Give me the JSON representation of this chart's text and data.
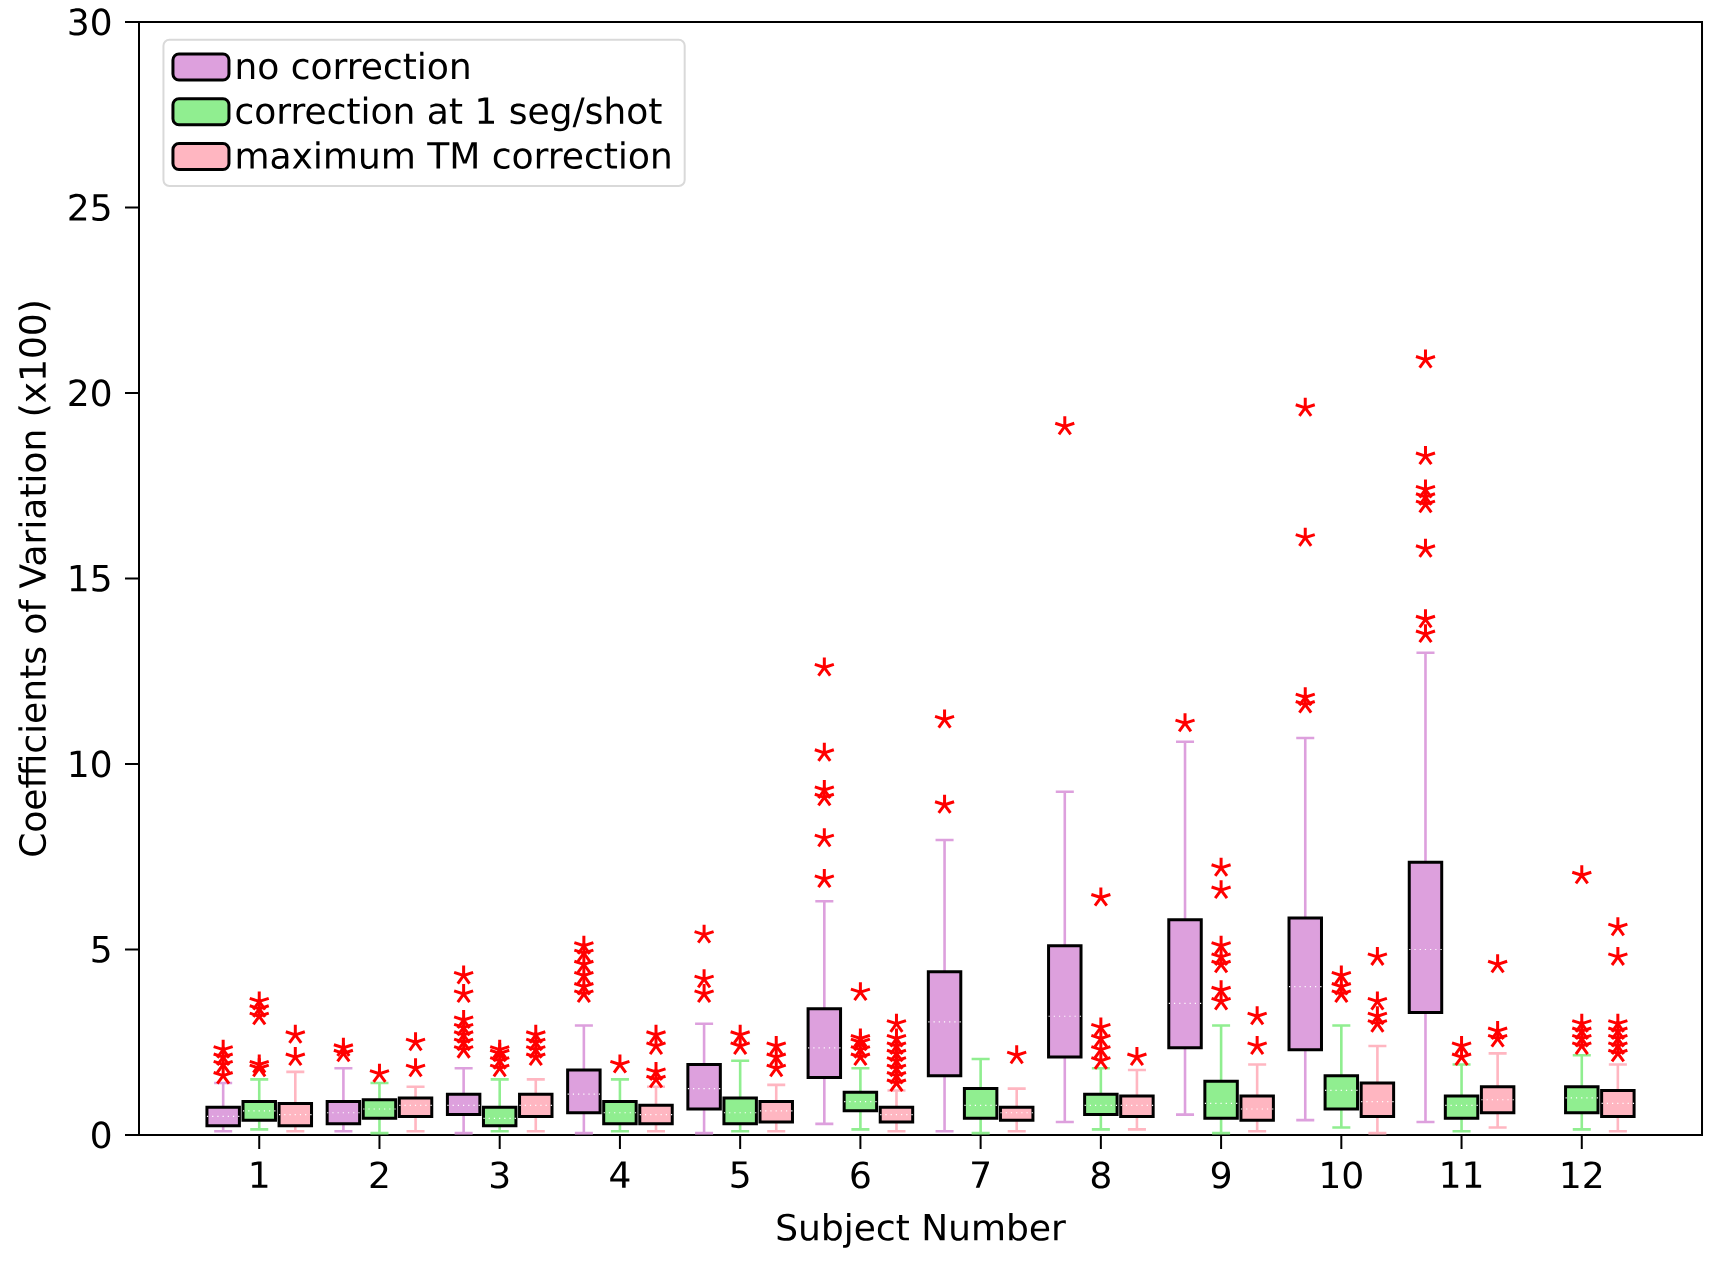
{
  "chart_data": {
    "type": "box",
    "xlabel": "Subject Number",
    "ylabel": "Coefficients of Variation (x100)",
    "categories": [
      "1",
      "2",
      "3",
      "4",
      "5",
      "6",
      "7",
      "8",
      "9",
      "10",
      "11",
      "12"
    ],
    "ylim": [
      0,
      30
    ],
    "yticks": [
      0,
      5,
      10,
      15,
      20,
      25,
      30
    ],
    "legend": "top left",
    "marker": "star",
    "series": [
      {
        "name": "no correction",
        "color": "#dda0dd",
        "boxes": [
          {
            "low": 0.1,
            "q1": 0.25,
            "median": 0.5,
            "q3": 0.75,
            "high": 1.4,
            "outliers": [
              1.6,
              1.9,
              2.1,
              2.3
            ]
          },
          {
            "low": 0.1,
            "q1": 0.3,
            "median": 0.6,
            "q3": 0.9,
            "high": 1.8,
            "outliers": [
              2.2,
              2.35
            ]
          },
          {
            "low": 0.05,
            "q1": 0.55,
            "median": 0.8,
            "q3": 1.1,
            "high": 1.8,
            "outliers": [
              2.3,
              2.5,
              2.7,
              2.9,
              3.1,
              3.8,
              4.3
            ]
          },
          {
            "low": 0.05,
            "q1": 0.6,
            "median": 1.1,
            "q3": 1.75,
            "high": 2.95,
            "outliers": [
              3.8,
              4.0,
              4.3,
              4.6,
              4.9,
              5.1
            ]
          },
          {
            "low": 0.05,
            "q1": 0.7,
            "median": 1.25,
            "q3": 1.9,
            "high": 3.0,
            "outliers": [
              3.8,
              4.2,
              5.4
            ]
          },
          {
            "low": 0.3,
            "q1": 1.55,
            "median": 2.35,
            "q3": 3.4,
            "high": 6.3,
            "outliers": [
              6.9,
              8.0,
              9.1,
              9.3,
              10.3,
              12.6
            ]
          },
          {
            "low": 0.1,
            "q1": 1.6,
            "median": 3.05,
            "q3": 4.4,
            "high": 7.95,
            "outliers": [
              8.9,
              11.2
            ]
          },
          {
            "low": 0.35,
            "q1": 2.1,
            "median": 3.2,
            "q3": 5.1,
            "high": 9.25,
            "outliers": [
              19.1
            ]
          },
          {
            "low": 0.55,
            "q1": 2.35,
            "median": 3.55,
            "q3": 5.8,
            "high": 10.6,
            "outliers": [
              11.1
            ]
          },
          {
            "low": 0.4,
            "q1": 2.3,
            "median": 4.0,
            "q3": 5.85,
            "high": 10.7,
            "outliers": [
              11.6,
              11.8,
              16.1,
              19.6
            ]
          },
          {
            "low": 0.35,
            "q1": 3.3,
            "median": 5.0,
            "q3": 7.35,
            "high": 13.0,
            "outliers": [
              13.5,
              13.9,
              15.8,
              17.0,
              17.2,
              17.4,
              18.3,
              20.9
            ]
          },
          null
        ]
      },
      {
        "name": "correction at 1 seg/shot",
        "color": "#90ee90",
        "boxes": [
          {
            "low": 0.15,
            "q1": 0.4,
            "median": 0.65,
            "q3": 0.9,
            "high": 1.5,
            "outliers": [
              1.8,
              1.9,
              3.2,
              3.4,
              3.6
            ]
          },
          {
            "low": 0.05,
            "q1": 0.45,
            "median": 0.7,
            "q3": 0.95,
            "high": 1.4,
            "outliers": [
              1.65
            ]
          },
          {
            "low": 0.1,
            "q1": 0.25,
            "median": 0.45,
            "q3": 0.75,
            "high": 1.5,
            "outliers": [
              1.8,
              2.0,
              2.2,
              2.3
            ]
          },
          {
            "low": 0.1,
            "q1": 0.3,
            "median": 0.6,
            "q3": 0.9,
            "high": 1.5,
            "outliers": [
              1.9
            ]
          },
          {
            "low": 0.1,
            "q1": 0.3,
            "median": 0.6,
            "q3": 1.0,
            "high": 2.0,
            "outliers": [
              2.4,
              2.7
            ]
          },
          {
            "low": 0.15,
            "q1": 0.65,
            "median": 0.9,
            "q3": 1.15,
            "high": 1.8,
            "outliers": [
              2.1,
              2.3,
              2.5,
              2.6,
              3.85
            ]
          },
          {
            "low": 0.05,
            "q1": 0.45,
            "median": 0.8,
            "q3": 1.25,
            "high": 2.05
          },
          {
            "low": 0.15,
            "q1": 0.55,
            "median": 0.8,
            "q3": 1.1,
            "high": 1.8,
            "outliers": [
              2.0,
              2.3,
              2.6,
              2.9,
              6.4
            ]
          },
          {
            "low": 0.05,
            "q1": 0.45,
            "median": 0.85,
            "q3": 1.45,
            "high": 2.95,
            "outliers": [
              3.6,
              3.9,
              4.6,
              4.8,
              5.1,
              6.6,
              7.2
            ]
          },
          {
            "low": 0.2,
            "q1": 0.7,
            "median": 1.2,
            "q3": 1.6,
            "high": 2.95,
            "outliers": [
              3.8,
              4.0,
              4.3
            ]
          },
          {
            "low": 0.1,
            "q1": 0.45,
            "median": 0.8,
            "q3": 1.05,
            "high": 1.9,
            "outliers": [
              2.1,
              2.4
            ]
          },
          {
            "low": 0.15,
            "q1": 0.6,
            "median": 1.0,
            "q3": 1.3,
            "high": 2.15,
            "outliers": [
              2.4,
              2.6,
              2.8,
              3.0,
              7.0
            ]
          }
        ]
      },
      {
        "name": "maximum TM correction",
        "color": "#ffb6c1",
        "boxes": [
          {
            "low": 0.1,
            "q1": 0.25,
            "median": 0.55,
            "q3": 0.85,
            "high": 1.7,
            "outliers": [
              2.1,
              2.7
            ]
          },
          {
            "low": 0.1,
            "q1": 0.5,
            "median": 0.8,
            "q3": 1.0,
            "high": 1.3,
            "outliers": [
              1.8,
              2.5
            ]
          },
          {
            "low": 0.1,
            "q1": 0.5,
            "median": 0.8,
            "q3": 1.1,
            "high": 1.5,
            "outliers": [
              2.1,
              2.3,
              2.5,
              2.7
            ]
          },
          {
            "low": 0.1,
            "q1": 0.3,
            "median": 0.55,
            "q3": 0.8,
            "high": 1.3,
            "outliers": [
              1.5,
              1.7,
              2.4,
              2.7
            ]
          },
          {
            "low": 0.1,
            "q1": 0.35,
            "median": 0.65,
            "q3": 0.9,
            "high": 1.35,
            "outliers": [
              1.8,
              2.1,
              2.4
            ]
          },
          {
            "low": 0.1,
            "q1": 0.35,
            "median": 0.55,
            "q3": 0.75,
            "high": 1.2,
            "outliers": [
              1.4,
              1.6,
              1.8,
              2.0,
              2.2,
              2.4,
              2.6,
              3.0
            ]
          },
          {
            "low": 0.1,
            "q1": 0.4,
            "median": 0.6,
            "q3": 0.75,
            "high": 1.25,
            "outliers": [
              2.15
            ]
          },
          {
            "low": 0.15,
            "q1": 0.5,
            "median": 0.8,
            "q3": 1.05,
            "high": 1.75,
            "outliers": [
              2.1
            ]
          },
          {
            "low": 0.1,
            "q1": 0.4,
            "median": 0.7,
            "q3": 1.05,
            "high": 1.9,
            "outliers": [
              2.4,
              3.2
            ]
          },
          {
            "low": 0.05,
            "q1": 0.5,
            "median": 0.9,
            "q3": 1.4,
            "high": 2.4,
            "outliers": [
              3.0,
              3.2,
              3.6,
              4.8
            ]
          },
          {
            "low": 0.2,
            "q1": 0.6,
            "median": 0.95,
            "q3": 1.3,
            "high": 2.2,
            "outliers": [
              2.6,
              2.8,
              4.6
            ]
          },
          {
            "low": 0.1,
            "q1": 0.5,
            "median": 0.85,
            "q3": 1.2,
            "high": 1.9,
            "outliers": [
              2.2,
              2.4,
              2.6,
              2.8,
              3.0,
              4.8,
              5.6
            ]
          }
        ]
      }
    ]
  }
}
